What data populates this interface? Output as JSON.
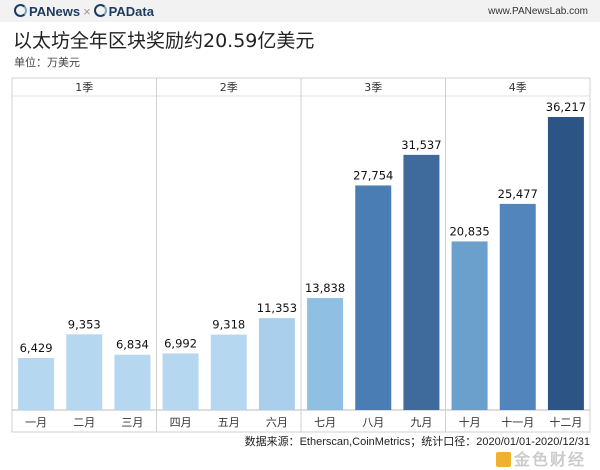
{
  "header": {
    "brand1": "PANews",
    "separator": "×",
    "brand2": "PAData",
    "site": "www.PANewsLab.com"
  },
  "title": "以太坊全年区块奖励约20.59亿美元",
  "unit": "单位：万美元",
  "footer": "数据来源：Etherscan,CoinMetrics；统计口径：2020/01/01-2020/12/31",
  "watermark": "金色财经",
  "chart_data": {
    "type": "bar",
    "title": "以太坊全年区块奖励约20.59亿美元",
    "ylabel": "",
    "xlabel": "",
    "ylim": [
      0,
      36217
    ],
    "grid": false,
    "groups": [
      "1季",
      "2季",
      "3季",
      "4季"
    ],
    "categories": [
      "一月",
      "二月",
      "三月",
      "四月",
      "五月",
      "六月",
      "七月",
      "八月",
      "九月",
      "十月",
      "十一月",
      "十二月"
    ],
    "values": [
      6429,
      9353,
      6834,
      6992,
      9318,
      11353,
      13838,
      27754,
      31537,
      20835,
      25477,
      36217
    ],
    "labels": [
      "6,429",
      "9,353",
      "6,834",
      "6,992",
      "9,318",
      "11,353",
      "13,838",
      "27,754",
      "31,537",
      "20,835",
      "25,477",
      "36,217"
    ],
    "colors": [
      "#b5d7ef",
      "#b5d7ef",
      "#b5d7ef",
      "#b5d7ef",
      "#b5d7ef",
      "#a9cfec",
      "#8fbfe3",
      "#4a7db4",
      "#3f6a9c",
      "#6b9fcc",
      "#5285bb",
      "#2c5585"
    ]
  }
}
